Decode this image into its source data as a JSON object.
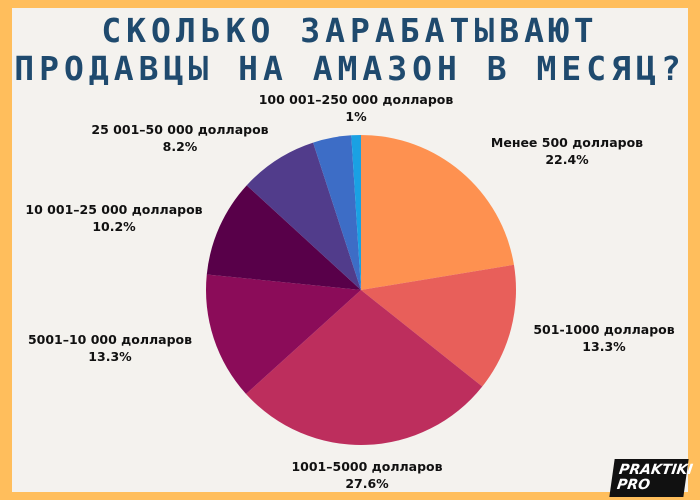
{
  "title_lines": [
    "СКОЛЬКО ЗАРАБАТЫВАЮТ",
    "ПРОДАВЦЫ НА АМАЗОН В МЕСЯЦ?"
  ],
  "logo": "PRAKTIKI PRO",
  "chart_data": {
    "type": "pie",
    "title": "СКОЛЬКО ЗАРАБАТЫВАЮТ ПРОДАВЦЫ НА АМАЗОН В МЕСЯЦ?",
    "slices": [
      {
        "label": "Менее 500 долларов",
        "value": 22.4,
        "value_text": "22.4%",
        "color": "#fe9150"
      },
      {
        "label": "501-1000 долларов",
        "value": 13.3,
        "value_text": "13.3%",
        "color": "#e85f5a"
      },
      {
        "label": "1001–5000 долларов",
        "value": 27.6,
        "value_text": "27.6%",
        "color": "#bd2e5d"
      },
      {
        "label": "5001–10 000 долларов",
        "value": 13.3,
        "value_text": "13.3%",
        "color": "#8b0c59"
      },
      {
        "label": "10 001–25 000 долларов",
        "value": 10.2,
        "value_text": "10.2%",
        "color": "#580049"
      },
      {
        "label": "25 001–50 000 долларов",
        "value": 8.2,
        "value_text": "8.2%",
        "color": "#513c8b"
      },
      {
        "label": "100 001–250 000 долларов",
        "value": 1,
        "value_text": "1%",
        "color": "#1aa1e3"
      }
    ],
    "extra_slice_color": "#3d6dc6",
    "legend": "none"
  }
}
